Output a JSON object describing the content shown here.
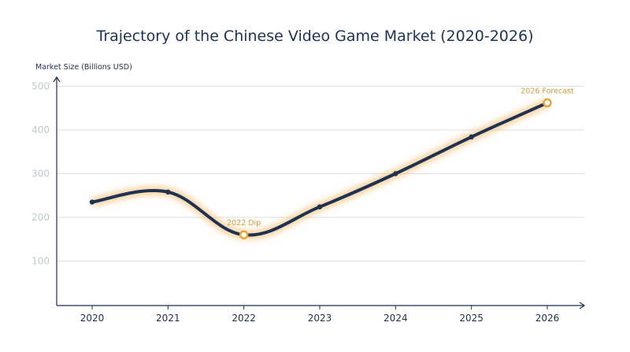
{
  "chart_data": {
    "type": "line",
    "title": "Trajectory of the Chinese Video Game Market (2020-2026)",
    "xlabel": "",
    "ylabel": "Market Size (Billions USD)",
    "categories": [
      "2020",
      "2021",
      "2022",
      "2023",
      "2024",
      "2025",
      "2026"
    ],
    "values": [
      235,
      258,
      160,
      224,
      300,
      384,
      462
    ],
    "ylim": [
      0,
      500
    ],
    "yticks": [
      100,
      200,
      300,
      400,
      500
    ],
    "grid": true,
    "smooth": true,
    "annotations": [
      {
        "category": "2022",
        "text": "2022 Dip"
      },
      {
        "category": "2026",
        "text": "2026 Forecast"
      }
    ],
    "colors": {
      "line": "#1e3354",
      "glow": "#f5c27a",
      "highlight_marker": "#e8a33a",
      "annotation_text": "#d99a3a",
      "grid": "#dcdfe4",
      "ytick_text": "#c3c7ce",
      "axis": "#1e2f4d"
    }
  }
}
